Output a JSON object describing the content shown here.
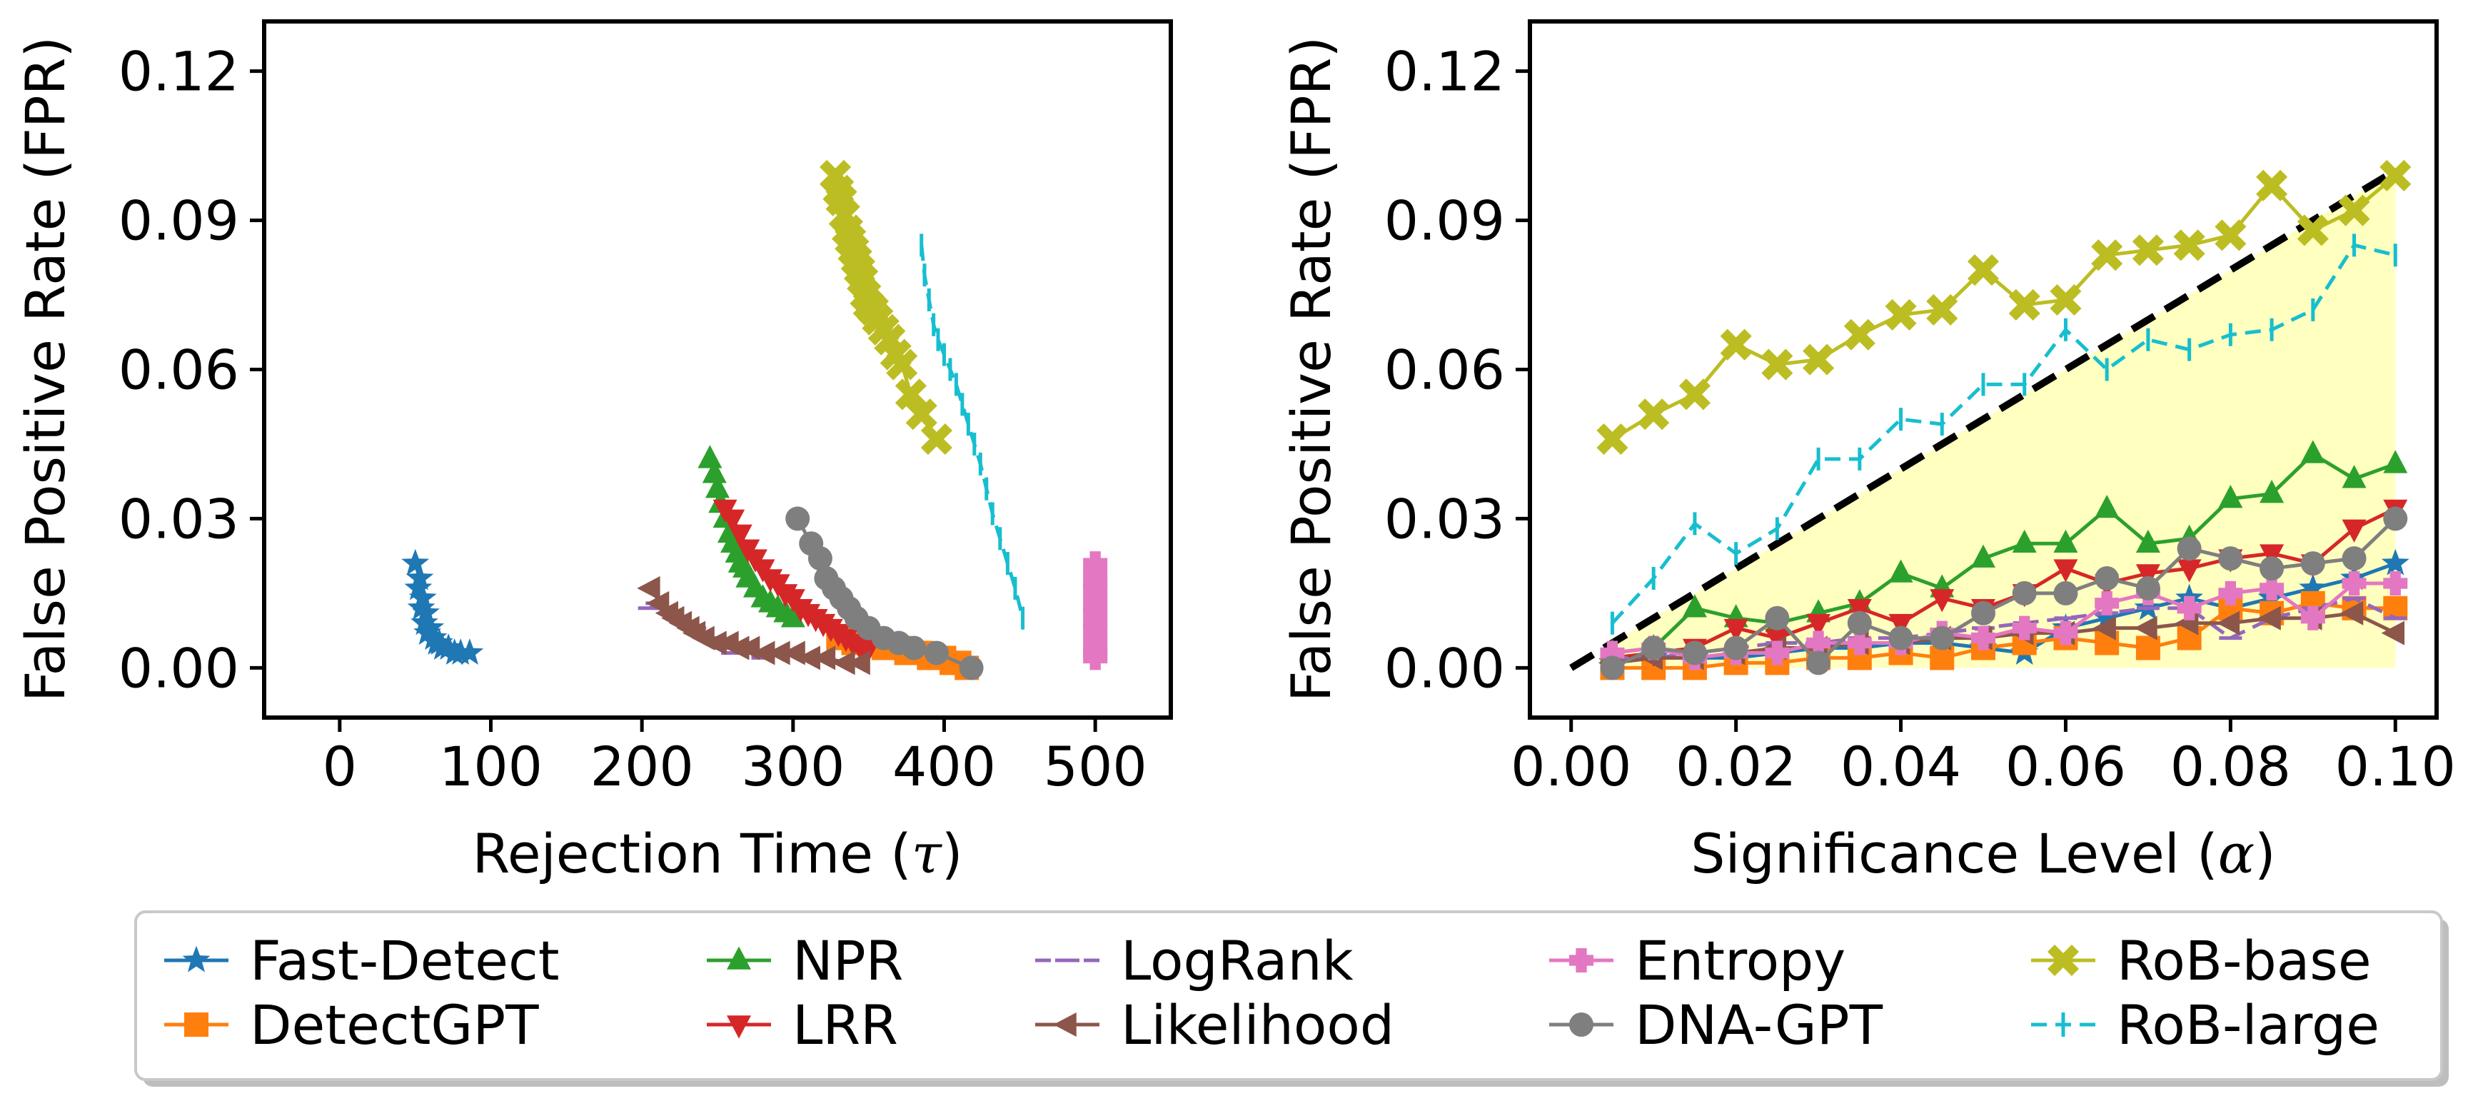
{
  "chart_data": [
    {
      "type": "line",
      "xlabel_main": "Rejection Time (",
      "xlabel_symbol": "τ",
      "xlabel_close": ")",
      "ylabel": "False Positive Rate (FPR)",
      "xlim": [
        -50,
        550
      ],
      "ylim": [
        -0.01,
        0.13
      ],
      "xticks": [
        0,
        100,
        200,
        300,
        400,
        500
      ],
      "xtick_labels": [
        "0",
        "100",
        "200",
        "300",
        "400",
        "500"
      ],
      "yticks": [
        0.0,
        0.03,
        0.06,
        0.09,
        0.12
      ],
      "ytick_labels": [
        "0.00",
        "0.03",
        "0.06",
        "0.09",
        "0.12"
      ],
      "series": [
        {
          "name": "Fast-Detect",
          "x": [
            50,
            53,
            52,
            55,
            54,
            57,
            56,
            60,
            58,
            62,
            64,
            66,
            68,
            72,
            76,
            80,
            86
          ],
          "y": [
            0.021,
            0.018,
            0.016,
            0.014,
            0.012,
            0.011,
            0.009,
            0.008,
            0.007,
            0.006,
            0.005,
            0.005,
            0.004,
            0.004,
            0.003,
            0.003,
            0.003
          ]
        },
        {
          "name": "DetectGPT",
          "x": [
            330,
            340,
            350,
            360,
            365,
            370,
            375,
            380,
            385,
            390,
            395,
            400,
            405,
            410,
            415
          ],
          "y": [
            0.006,
            0.005,
            0.005,
            0.004,
            0.004,
            0.004,
            0.003,
            0.003,
            0.003,
            0.002,
            0.002,
            0.002,
            0.001,
            0.001,
            0.0
          ]
        },
        {
          "name": "NPR",
          "x": [
            245,
            248,
            250,
            252,
            255,
            258,
            260,
            263,
            265,
            268,
            270,
            275,
            280,
            285,
            290,
            295,
            300
          ],
          "y": [
            0.042,
            0.039,
            0.036,
            0.033,
            0.03,
            0.027,
            0.025,
            0.023,
            0.021,
            0.02,
            0.018,
            0.016,
            0.014,
            0.013,
            0.012,
            0.011,
            0.01
          ]
        },
        {
          "name": "LRR",
          "x": [
            255,
            260,
            265,
            270,
            275,
            280,
            285,
            290,
            295,
            300,
            305,
            310,
            315,
            320,
            325,
            330,
            335,
            340,
            345,
            350
          ],
          "y": [
            0.032,
            0.03,
            0.027,
            0.024,
            0.022,
            0.02,
            0.018,
            0.017,
            0.015,
            0.014,
            0.012,
            0.011,
            0.01,
            0.009,
            0.008,
            0.007,
            0.006,
            0.005,
            0.004,
            0.004
          ]
        },
        {
          "name": "LogRank",
          "x": [
            205,
            210,
            215,
            220,
            225,
            230,
            235,
            240,
            245,
            250,
            255,
            260,
            270,
            280
          ],
          "y": [
            0.012,
            0.013,
            0.012,
            0.011,
            0.01,
            0.009,
            0.008,
            0.007,
            0.006,
            0.005,
            0.004,
            0.003,
            0.003,
            0.002
          ]
        },
        {
          "name": "Entropy",
          "x": [
            500,
            500,
            500,
            500,
            500,
            500,
            500,
            500,
            500,
            500,
            500,
            500,
            500
          ],
          "y": [
            0.021,
            0.019,
            0.017,
            0.016,
            0.014,
            0.012,
            0.011,
            0.009,
            0.008,
            0.006,
            0.004,
            0.003,
            0.002
          ]
        },
        {
          "name": "DNA-GPT",
          "x": [
            303,
            312,
            318,
            322,
            327,
            332,
            337,
            342,
            350,
            360,
            370,
            380,
            395,
            418
          ],
          "y": [
            0.03,
            0.025,
            0.022,
            0.018,
            0.016,
            0.014,
            0.012,
            0.01,
            0.008,
            0.006,
            0.005,
            0.004,
            0.003,
            0.0
          ]
        },
        {
          "name": "Likelihood",
          "x": [
            206,
            212,
            218,
            222,
            227,
            232,
            236,
            242,
            250,
            258,
            265,
            272,
            282,
            292,
            302,
            312,
            322,
            335,
            345
          ],
          "y": [
            0.016,
            0.013,
            0.011,
            0.01,
            0.009,
            0.008,
            0.007,
            0.006,
            0.005,
            0.005,
            0.004,
            0.004,
            0.003,
            0.003,
            0.003,
            0.002,
            0.002,
            0.001,
            0.001
          ]
        },
        {
          "name": "RoB-base",
          "x": [
            328,
            330,
            332,
            334,
            336,
            338,
            340,
            342,
            344,
            346,
            348,
            350,
            353,
            356,
            360,
            364,
            368,
            372,
            378,
            385,
            395
          ],
          "y": [
            0.099,
            0.096,
            0.094,
            0.091,
            0.088,
            0.086,
            0.084,
            0.082,
            0.08,
            0.078,
            0.075,
            0.073,
            0.072,
            0.07,
            0.068,
            0.066,
            0.063,
            0.061,
            0.055,
            0.051,
            0.046
          ]
        },
        {
          "name": "RoB-large",
          "x": [
            385,
            387,
            390,
            393,
            396,
            400,
            404,
            408,
            412,
            416,
            420,
            424,
            428,
            432,
            437,
            442,
            447,
            452
          ],
          "y": [
            0.085,
            0.079,
            0.074,
            0.069,
            0.066,
            0.063,
            0.06,
            0.057,
            0.053,
            0.049,
            0.045,
            0.041,
            0.036,
            0.031,
            0.026,
            0.021,
            0.016,
            0.01
          ]
        }
      ]
    },
    {
      "type": "line",
      "xlabel_main": "Significance Level (",
      "xlabel_symbol": "α",
      "xlabel_close": ")",
      "ylabel": "False Positive Rate (FPR)",
      "xlim": [
        -0.005,
        0.105
      ],
      "ylim": [
        -0.01,
        0.13
      ],
      "xticks": [
        0.0,
        0.02,
        0.04,
        0.06,
        0.08,
        0.1
      ],
      "xtick_labels": [
        "0.00",
        "0.02",
        "0.04",
        "0.06",
        "0.08",
        "0.10"
      ],
      "yticks": [
        0.0,
        0.03,
        0.06,
        0.09,
        0.12
      ],
      "ytick_labels": [
        "0.00",
        "0.03",
        "0.06",
        "0.09",
        "0.12"
      ],
      "reference_line": {
        "x": [
          0.0,
          0.1
        ],
        "y": [
          0.0,
          0.1
        ]
      },
      "shaded_region": {
        "x": [
          0.005,
          0.1
        ],
        "y_lower": 0.0,
        "y_upper_equals_x": true
      },
      "x": [
        0.005,
        0.01,
        0.015,
        0.02,
        0.025,
        0.03,
        0.035,
        0.04,
        0.045,
        0.05,
        0.055,
        0.06,
        0.065,
        0.07,
        0.075,
        0.08,
        0.085,
        0.09,
        0.095,
        0.1
      ],
      "series": [
        {
          "name": "Fast-Detect",
          "values": [
            0.001,
            0.002,
            0.002,
            0.002,
            0.003,
            0.004,
            0.004,
            0.005,
            0.005,
            0.004,
            0.003,
            0.008,
            0.01,
            0.012,
            0.014,
            0.012,
            0.014,
            0.016,
            0.018,
            0.021
          ]
        },
        {
          "name": "DetectGPT",
          "values": [
            0.0,
            0.0,
            0.0,
            0.001,
            0.001,
            0.002,
            0.002,
            0.003,
            0.002,
            0.004,
            0.005,
            0.006,
            0.005,
            0.004,
            0.006,
            0.012,
            0.011,
            0.013,
            0.012,
            0.012
          ]
        },
        {
          "name": "NPR",
          "values": [
            0.003,
            0.004,
            0.012,
            0.01,
            0.009,
            0.011,
            0.013,
            0.019,
            0.016,
            0.022,
            0.025,
            0.025,
            0.032,
            0.025,
            0.026,
            0.034,
            0.035,
            0.043,
            0.038,
            0.041
          ]
        },
        {
          "name": "LRR",
          "values": [
            0.002,
            0.003,
            0.004,
            0.008,
            0.006,
            0.009,
            0.012,
            0.009,
            0.014,
            0.012,
            0.015,
            0.02,
            0.017,
            0.019,
            0.02,
            0.022,
            0.023,
            0.021,
            0.028,
            0.032
          ]
        },
        {
          "name": "LogRank",
          "values": [
            0.002,
            0.002,
            0.003,
            0.004,
            0.005,
            0.005,
            0.006,
            0.006,
            0.007,
            0.008,
            0.009,
            0.01,
            0.011,
            0.012,
            0.012,
            0.006,
            0.01,
            0.012,
            0.014,
            0.01
          ]
        },
        {
          "name": "Likelihood",
          "values": [
            0.001,
            0.002,
            0.002,
            0.003,
            0.004,
            0.004,
            0.005,
            0.005,
            0.006,
            0.006,
            0.007,
            0.007,
            0.008,
            0.008,
            0.009,
            0.009,
            0.01,
            0.01,
            0.011,
            0.007
          ]
        },
        {
          "name": "Entropy",
          "values": [
            0.003,
            0.004,
            0.002,
            0.003,
            0.003,
            0.005,
            0.005,
            0.005,
            0.007,
            0.006,
            0.008,
            0.007,
            0.013,
            0.015,
            0.012,
            0.015,
            0.016,
            0.01,
            0.017,
            0.017
          ]
        },
        {
          "name": "DNA-GPT",
          "values": [
            0.0,
            0.004,
            0.003,
            0.004,
            0.01,
            0.001,
            0.009,
            0.006,
            0.006,
            0.011,
            0.015,
            0.015,
            0.018,
            0.016,
            0.024,
            0.022,
            0.02,
            0.021,
            0.022,
            0.03
          ]
        },
        {
          "name": "RoB-base",
          "values": [
            0.046,
            0.051,
            0.055,
            0.065,
            0.061,
            0.062,
            0.067,
            0.071,
            0.072,
            0.08,
            0.073,
            0.074,
            0.083,
            0.084,
            0.085,
            0.087,
            0.097,
            0.088,
            0.092,
            0.099
          ]
        },
        {
          "name": "RoB-large",
          "values": [
            0.009,
            0.018,
            0.029,
            0.023,
            0.028,
            0.042,
            0.042,
            0.05,
            0.049,
            0.057,
            0.057,
            0.068,
            0.06,
            0.066,
            0.064,
            0.067,
            0.068,
            0.072,
            0.085,
            0.083
          ]
        }
      ]
    }
  ],
  "legend": {
    "placement": "bottom-center",
    "entries": [
      {
        "name": "Fast-Detect",
        "color": "#1f77b4",
        "marker": "star"
      },
      {
        "name": "DetectGPT",
        "color": "#ff7f0e",
        "marker": "square"
      },
      {
        "name": "NPR",
        "color": "#2ca02c",
        "marker": "triangle-up"
      },
      {
        "name": "LRR",
        "color": "#d62728",
        "marker": "triangle-down"
      },
      {
        "name": "LogRank",
        "color": "#9467bd",
        "marker": "hline"
      },
      {
        "name": "Likelihood",
        "color": "#8c564b",
        "marker": "triangle-left"
      },
      {
        "name": "Entropy",
        "color": "#e377c2",
        "marker": "plus"
      },
      {
        "name": "DNA-GPT",
        "color": "#7f7f7f",
        "marker": "circle"
      },
      {
        "name": "RoB-base",
        "color": "#bcbd22",
        "marker": "x"
      },
      {
        "name": "RoB-large",
        "color": "#17becf",
        "marker": "vline"
      }
    ]
  },
  "colors": {
    "reference_line": "#000000",
    "shaded_region": "#ffffc0"
  }
}
